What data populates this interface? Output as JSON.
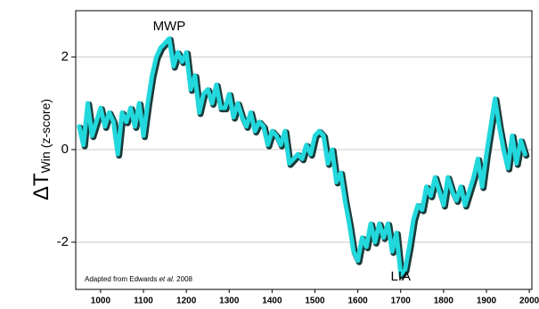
{
  "chart_data": {
    "type": "line",
    "ylabel": "ΔT",
    "ylabel_sub": "Win",
    "ylabel_unit": "(z-score)",
    "annotations": [
      {
        "text": "MWP",
        "x": 1160,
        "y": 2.65,
        "color": "#e0283c"
      },
      {
        "text": "LIA",
        "x": 1700,
        "y": -2.75,
        "color": "#2828c8"
      }
    ],
    "note": [
      "Adapted from Edwards ",
      "et al.",
      " 2008"
    ],
    "x": [
      950,
      960,
      970,
      980,
      990,
      1000,
      1010,
      1020,
      1030,
      1040,
      1050,
      1060,
      1070,
      1080,
      1090,
      1100,
      1110,
      1120,
      1130,
      1140,
      1150,
      1160,
      1170,
      1180,
      1190,
      1200,
      1210,
      1220,
      1230,
      1240,
      1250,
      1260,
      1270,
      1280,
      1290,
      1300,
      1310,
      1320,
      1330,
      1340,
      1350,
      1360,
      1370,
      1380,
      1390,
      1400,
      1410,
      1420,
      1430,
      1440,
      1450,
      1460,
      1470,
      1480,
      1490,
      1500,
      1510,
      1520,
      1530,
      1540,
      1550,
      1560,
      1570,
      1580,
      1590,
      1600,
      1610,
      1620,
      1630,
      1640,
      1650,
      1660,
      1670,
      1680,
      1690,
      1700,
      1710,
      1720,
      1730,
      1740,
      1750,
      1760,
      1770,
      1780,
      1790,
      1800,
      1810,
      1820,
      1830,
      1840,
      1850,
      1860,
      1870,
      1880,
      1890,
      1900,
      1910,
      1920,
      1930,
      1940,
      1950,
      1960,
      1970,
      1980,
      1990
    ],
    "series": [
      {
        "name": "ΔT Win",
        "color": "#22d8dc",
        "values": [
          0.5,
          0.1,
          1.0,
          0.3,
          0.6,
          0.9,
          0.5,
          0.8,
          0.6,
          -0.1,
          0.8,
          0.6,
          0.9,
          0.5,
          1.0,
          0.3,
          1.0,
          1.6,
          2.0,
          2.2,
          2.3,
          2.4,
          1.8,
          2.1,
          1.9,
          2.1,
          1.3,
          1.6,
          0.8,
          1.2,
          1.3,
          1.0,
          1.4,
          0.9,
          0.9,
          1.2,
          0.7,
          1.0,
          0.7,
          0.5,
          0.8,
          0.4,
          0.6,
          0.5,
          0.1,
          0.4,
          0.3,
          0.1,
          0.4,
          -0.3,
          -0.2,
          -0.1,
          -0.2,
          0.1,
          -0.1,
          0.3,
          0.4,
          0.3,
          -0.3,
          0.0,
          -0.7,
          -0.5,
          -1.1,
          -1.6,
          -2.2,
          -2.4,
          -1.9,
          -2.1,
          -1.6,
          -2.0,
          -1.6,
          -1.9,
          -1.6,
          -2.2,
          -1.8,
          -2.7,
          -2.6,
          -2.1,
          -1.5,
          -1.2,
          -1.3,
          -0.8,
          -1.0,
          -0.6,
          -0.9,
          -1.2,
          -0.6,
          -0.9,
          -1.1,
          -0.8,
          -1.2,
          -0.9,
          -0.6,
          -0.2,
          -0.8,
          -0.1,
          0.5,
          1.1,
          0.5,
          0.0,
          -0.4,
          0.3,
          -0.3,
          0.2,
          -0.1
        ]
      }
    ],
    "xlim": [
      942,
      2006
    ],
    "xticks": [
      1000,
      1100,
      1200,
      1300,
      1400,
      1500,
      1600,
      1700,
      1800,
      1900,
      2000
    ],
    "ylim": [
      -3.02,
      3
    ],
    "yticks": [
      -2,
      0,
      2
    ],
    "grid": true
  }
}
